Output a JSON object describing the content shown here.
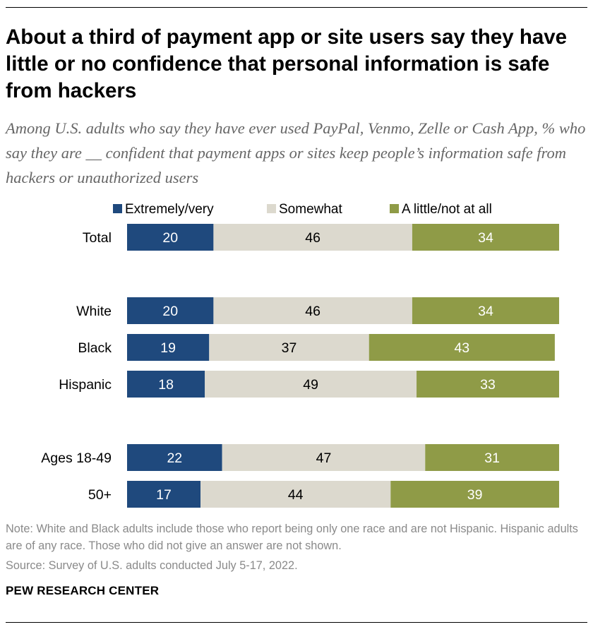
{
  "title": "About a third of payment app or site users say they have little or no confidence that personal information is safe from hackers",
  "subtitle": "Among U.S. adults who say they have ever used PayPal, Venmo, Zelle or Cash App, % who say they are __ confident that payment apps or sites keep people’s information safe from hackers or unauthorized users",
  "note": "Note: White and Black adults include those who report being only one race and are not Hispanic. Hispanic adults are of any race. Those who did not give an answer are not shown.",
  "source": "Source: Survey of U.S. adults conducted July 5-17, 2022.",
  "brand": "PEW RESEARCH CENTER",
  "chart_data": {
    "type": "bar",
    "orientation": "horizontal",
    "stacked": true,
    "title": "",
    "xlabel": "",
    "ylabel": "",
    "xlim": [
      0,
      100
    ],
    "grid": false,
    "legend_position": "top",
    "categories": [
      "Total",
      "White",
      "Black",
      "Hispanic",
      "Ages 18-49",
      "50+"
    ],
    "groups": [
      [
        "Total"
      ],
      [
        "White",
        "Black",
        "Hispanic"
      ],
      [
        "Ages 18-49",
        "50+"
      ]
    ],
    "series": [
      {
        "name": "Extremely/very",
        "color": "#1f497d",
        "label_color": "#ffffff",
        "values": [
          20,
          20,
          19,
          18,
          22,
          17
        ]
      },
      {
        "name": "Somewhat",
        "color": "#dcd9ce",
        "label_color": "#000000",
        "values": [
          46,
          46,
          37,
          49,
          47,
          44
        ]
      },
      {
        "name": "A little/not at all",
        "color": "#8f9b47",
        "label_color": "#ffffff",
        "values": [
          34,
          34,
          43,
          33,
          31,
          39
        ]
      }
    ]
  }
}
